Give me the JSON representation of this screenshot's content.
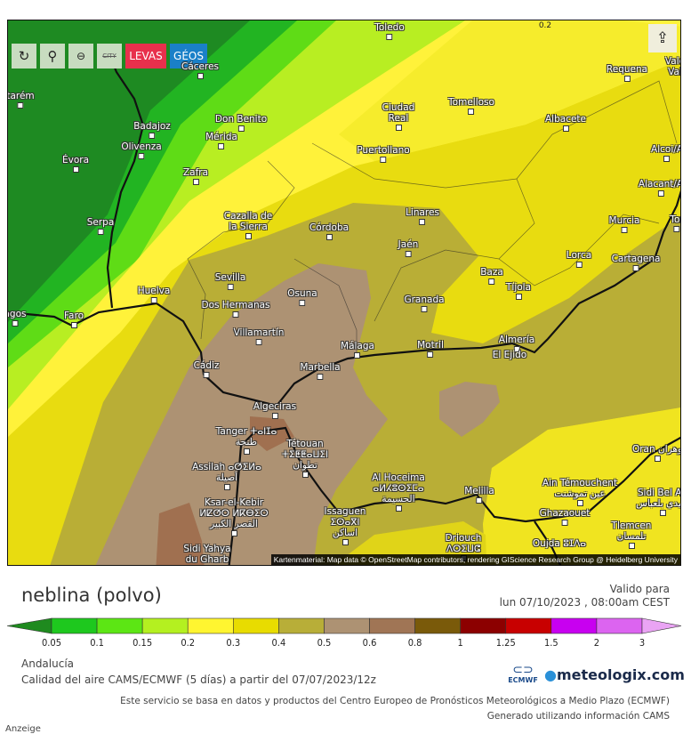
{
  "toolbar": {
    "refresh_icon": "refresh-icon",
    "location_icon": "map-pin-icon",
    "zoom_icon": "zoom-out-icon",
    "city_label": "CITY",
    "levas_label": "LEVAS",
    "geos_label": "GÉOS",
    "share_icon": "share-icon",
    "colors": {
      "levas": "#e8304c",
      "geos": "#1a80c8"
    }
  },
  "map": {
    "contour_label": "0.2",
    "attribution": "Kartenmaterial: Map data © OpenStreetMap contributors, rendering GIScience Research Group @ Heidelberg University",
    "cities": [
      "Toledo",
      "Cáceres",
      "Badajoz",
      "Olivenza",
      "Évora",
      "Don Benito",
      "Mérida",
      "Zafra",
      "Serpa",
      "Cazalla de la Sierra",
      "Córdoba",
      "Sevilla",
      "Dos Hermanas",
      "Huelva",
      "Faro",
      "Osuna",
      "Villamartín",
      "Cádiz",
      "Marbella",
      "Málaga",
      "Algeciras",
      "Tanger ⵜⴰⵏⵊⴰ طنجة",
      "Tétouan ⵜⵉⵟⵟⴰⵡⵉⵏ تطوان",
      "Assilah ⴰⵚⵉⵍⴰ أصيلة",
      "Ksar-el-Kebir ⵍⵇⵚⵔ ⵍⴽⴱⵉⵔ القصر الكبير",
      "Sidi Yahya du Gharb",
      "Issaguen ⵉⵙⴰⴳⵏ اساكن",
      "Al Hoceima ⴰⵍⵃⵓⵙⵉⵎⴰ الحسيمة",
      "Melilla",
      "Driouch ⴷⵔⵉⵡⵛ",
      "Oujda ⵓⵊⴷⴰ",
      "Tlemcen تلمسان",
      "Ghazaouet",
      "Ain Témouchent عين تموشنت",
      "Sidi Bel Ab سيدي بلعباس",
      "Oran وهران",
      "Almería",
      "El Ejido",
      "Motril",
      "Granada",
      "Jaén",
      "Linares",
      "Baza",
      "Tíjola",
      "Lorca",
      "Cartagena",
      "Murcia",
      "Tor",
      "Alacant/A",
      "Alcoi/A",
      "Albacete",
      "Requena",
      "Vale Val",
      "Tomelloso",
      "Ciudad Real",
      "Puertollano",
      "tarém",
      "agos"
    ]
  },
  "header": {
    "title": "neblina (polvo)",
    "valid_label": "Valido para",
    "valid_time": "lun 07/10/2023 , 08:00am CEST"
  },
  "legend": {
    "labels": [
      "0.05",
      "0.1",
      "0.15",
      "0.2",
      "0.3",
      "0.4",
      "0.5",
      "0.6",
      "0.8",
      "1",
      "1.25",
      "1.5",
      "2",
      "3"
    ],
    "colors": [
      "#1f8a1f",
      "#1ec81e",
      "#5ce614",
      "#b4f020",
      "#fff530",
      "#e8dc00",
      "#b8ae38",
      "#ad9273",
      "#a07555",
      "#7a5a0a",
      "#8c0000",
      "#c80000",
      "#c800f0",
      "#dc64f0",
      "#eaa4f4"
    ]
  },
  "footer": {
    "region": "Andalucía",
    "model": "Calidad del aire CAMS/ECMWF (5 días) a partir del 07/07/2023/12z",
    "ecmwf_logo": "ECMWF",
    "brand": "meteologix.com",
    "disclaimer": "Este servicio se basa en datos y productos del Centro Europeo de Pronósticos Meteorológicos a Medio Plazo (ECMWF)",
    "generated": "Generado utilizando información CAMS",
    "ad_label": "Anzeige"
  }
}
